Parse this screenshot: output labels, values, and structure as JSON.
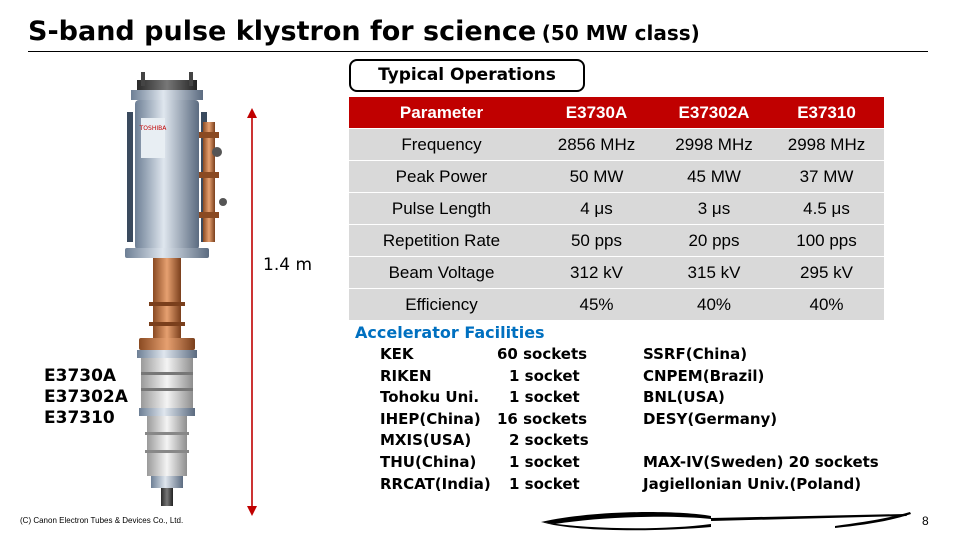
{
  "title": {
    "main": "S-band pulse klystron for science",
    "sub": "(50 MW class)"
  },
  "ops_box_label": "Typical Operations",
  "height_label": "1.4 m",
  "models": [
    "E3730A",
    "E37302A",
    "E37310"
  ],
  "table": {
    "header": [
      "Parameter",
      "E3730A",
      "E37302A",
      "E37310"
    ],
    "rows": [
      [
        "Frequency",
        "2856 MHz",
        "2998 MHz",
        "2998 MHz"
      ],
      [
        "Peak Power",
        "50 MW",
        "45 MW",
        "37 MW"
      ],
      [
        "Pulse Length",
        "4 μs",
        "3 μs",
        "4.5 μs"
      ],
      [
        "Repetition Rate",
        "50 pps",
        "20 pps",
        "100 pps"
      ],
      [
        "Beam Voltage",
        "312 kV",
        "315 kV",
        "295 kV"
      ],
      [
        "Efficiency",
        "45%",
        "40%",
        "40%"
      ]
    ],
    "header_color": "#c00000",
    "row_color": "#d9d9d9"
  },
  "accelerators": {
    "title": "Accelerator Facilities",
    "title_color": "#0070c0",
    "left": [
      {
        "name": "KEK",
        "count": "60 sockets"
      },
      {
        "name": "RIKEN",
        "count": "1 socket"
      },
      {
        "name": "Tohoku Uni.",
        "count": "1 socket"
      },
      {
        "name": "IHEP(China)",
        "count": "16 sockets"
      },
      {
        "name": "MXIS(USA)",
        "count": "2 sockets"
      },
      {
        "name": "THU(China)",
        "count": "1 socket"
      },
      {
        "name": "RRCAT(India)",
        "count": "1 socket"
      }
    ],
    "right": [
      "SSRF(China)",
      "CNPEM(Brazil)",
      "BNL(USA)",
      "DESY(Germany)",
      "",
      "MAX-IV(Sweden) 20 sockets",
      "Jagiellonian Univ.(Poland)"
    ]
  },
  "footer": {
    "copyright": "(C) Canon Electron Tubes & Devices Co., Ltd.",
    "page_number": "8"
  }
}
